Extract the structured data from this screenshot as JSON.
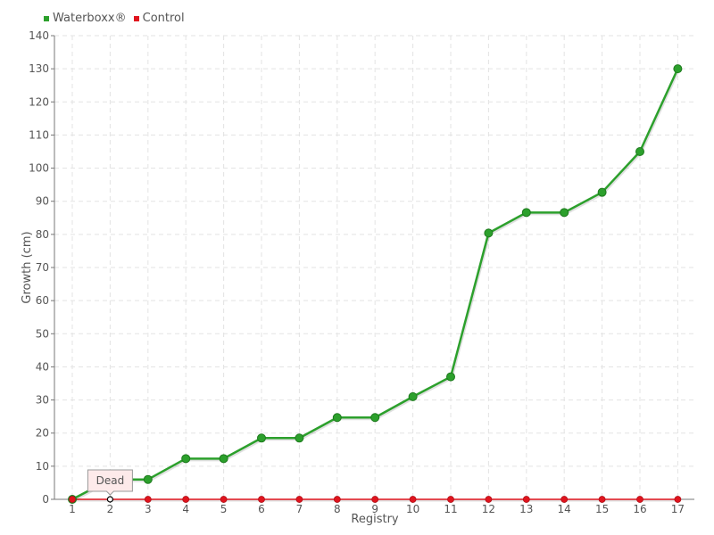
{
  "chart_data": {
    "type": "line",
    "xlabel": "Registry",
    "ylabel": "Growth (cm)",
    "categories": [
      "1",
      "2",
      "3",
      "4",
      "5",
      "6",
      "7",
      "8",
      "9",
      "10",
      "11",
      "12",
      "13",
      "14",
      "15",
      "16",
      "17"
    ],
    "ylim": [
      0,
      140
    ],
    "yticks": [
      0,
      10,
      20,
      30,
      40,
      50,
      60,
      70,
      80,
      90,
      100,
      110,
      120,
      130,
      140
    ],
    "grid": true,
    "legend_position": "top-left",
    "series": [
      {
        "name": "Waterboxx®",
        "color": "#2ca02c",
        "values": [
          0,
          6,
          6,
          12.3,
          12.3,
          18.5,
          18.5,
          24.7,
          24.7,
          31,
          37,
          80.4,
          86.6,
          86.6,
          92.7,
          105,
          130
        ]
      },
      {
        "name": "Control",
        "color": "#e0141e",
        "values": [
          0,
          0,
          0,
          0,
          0,
          0,
          0,
          0,
          0,
          0,
          0,
          0,
          0,
          0,
          0,
          0,
          0
        ]
      }
    ],
    "annotations": [
      {
        "text": "Dead",
        "x": "2",
        "y": 0,
        "series": "Control"
      }
    ]
  }
}
